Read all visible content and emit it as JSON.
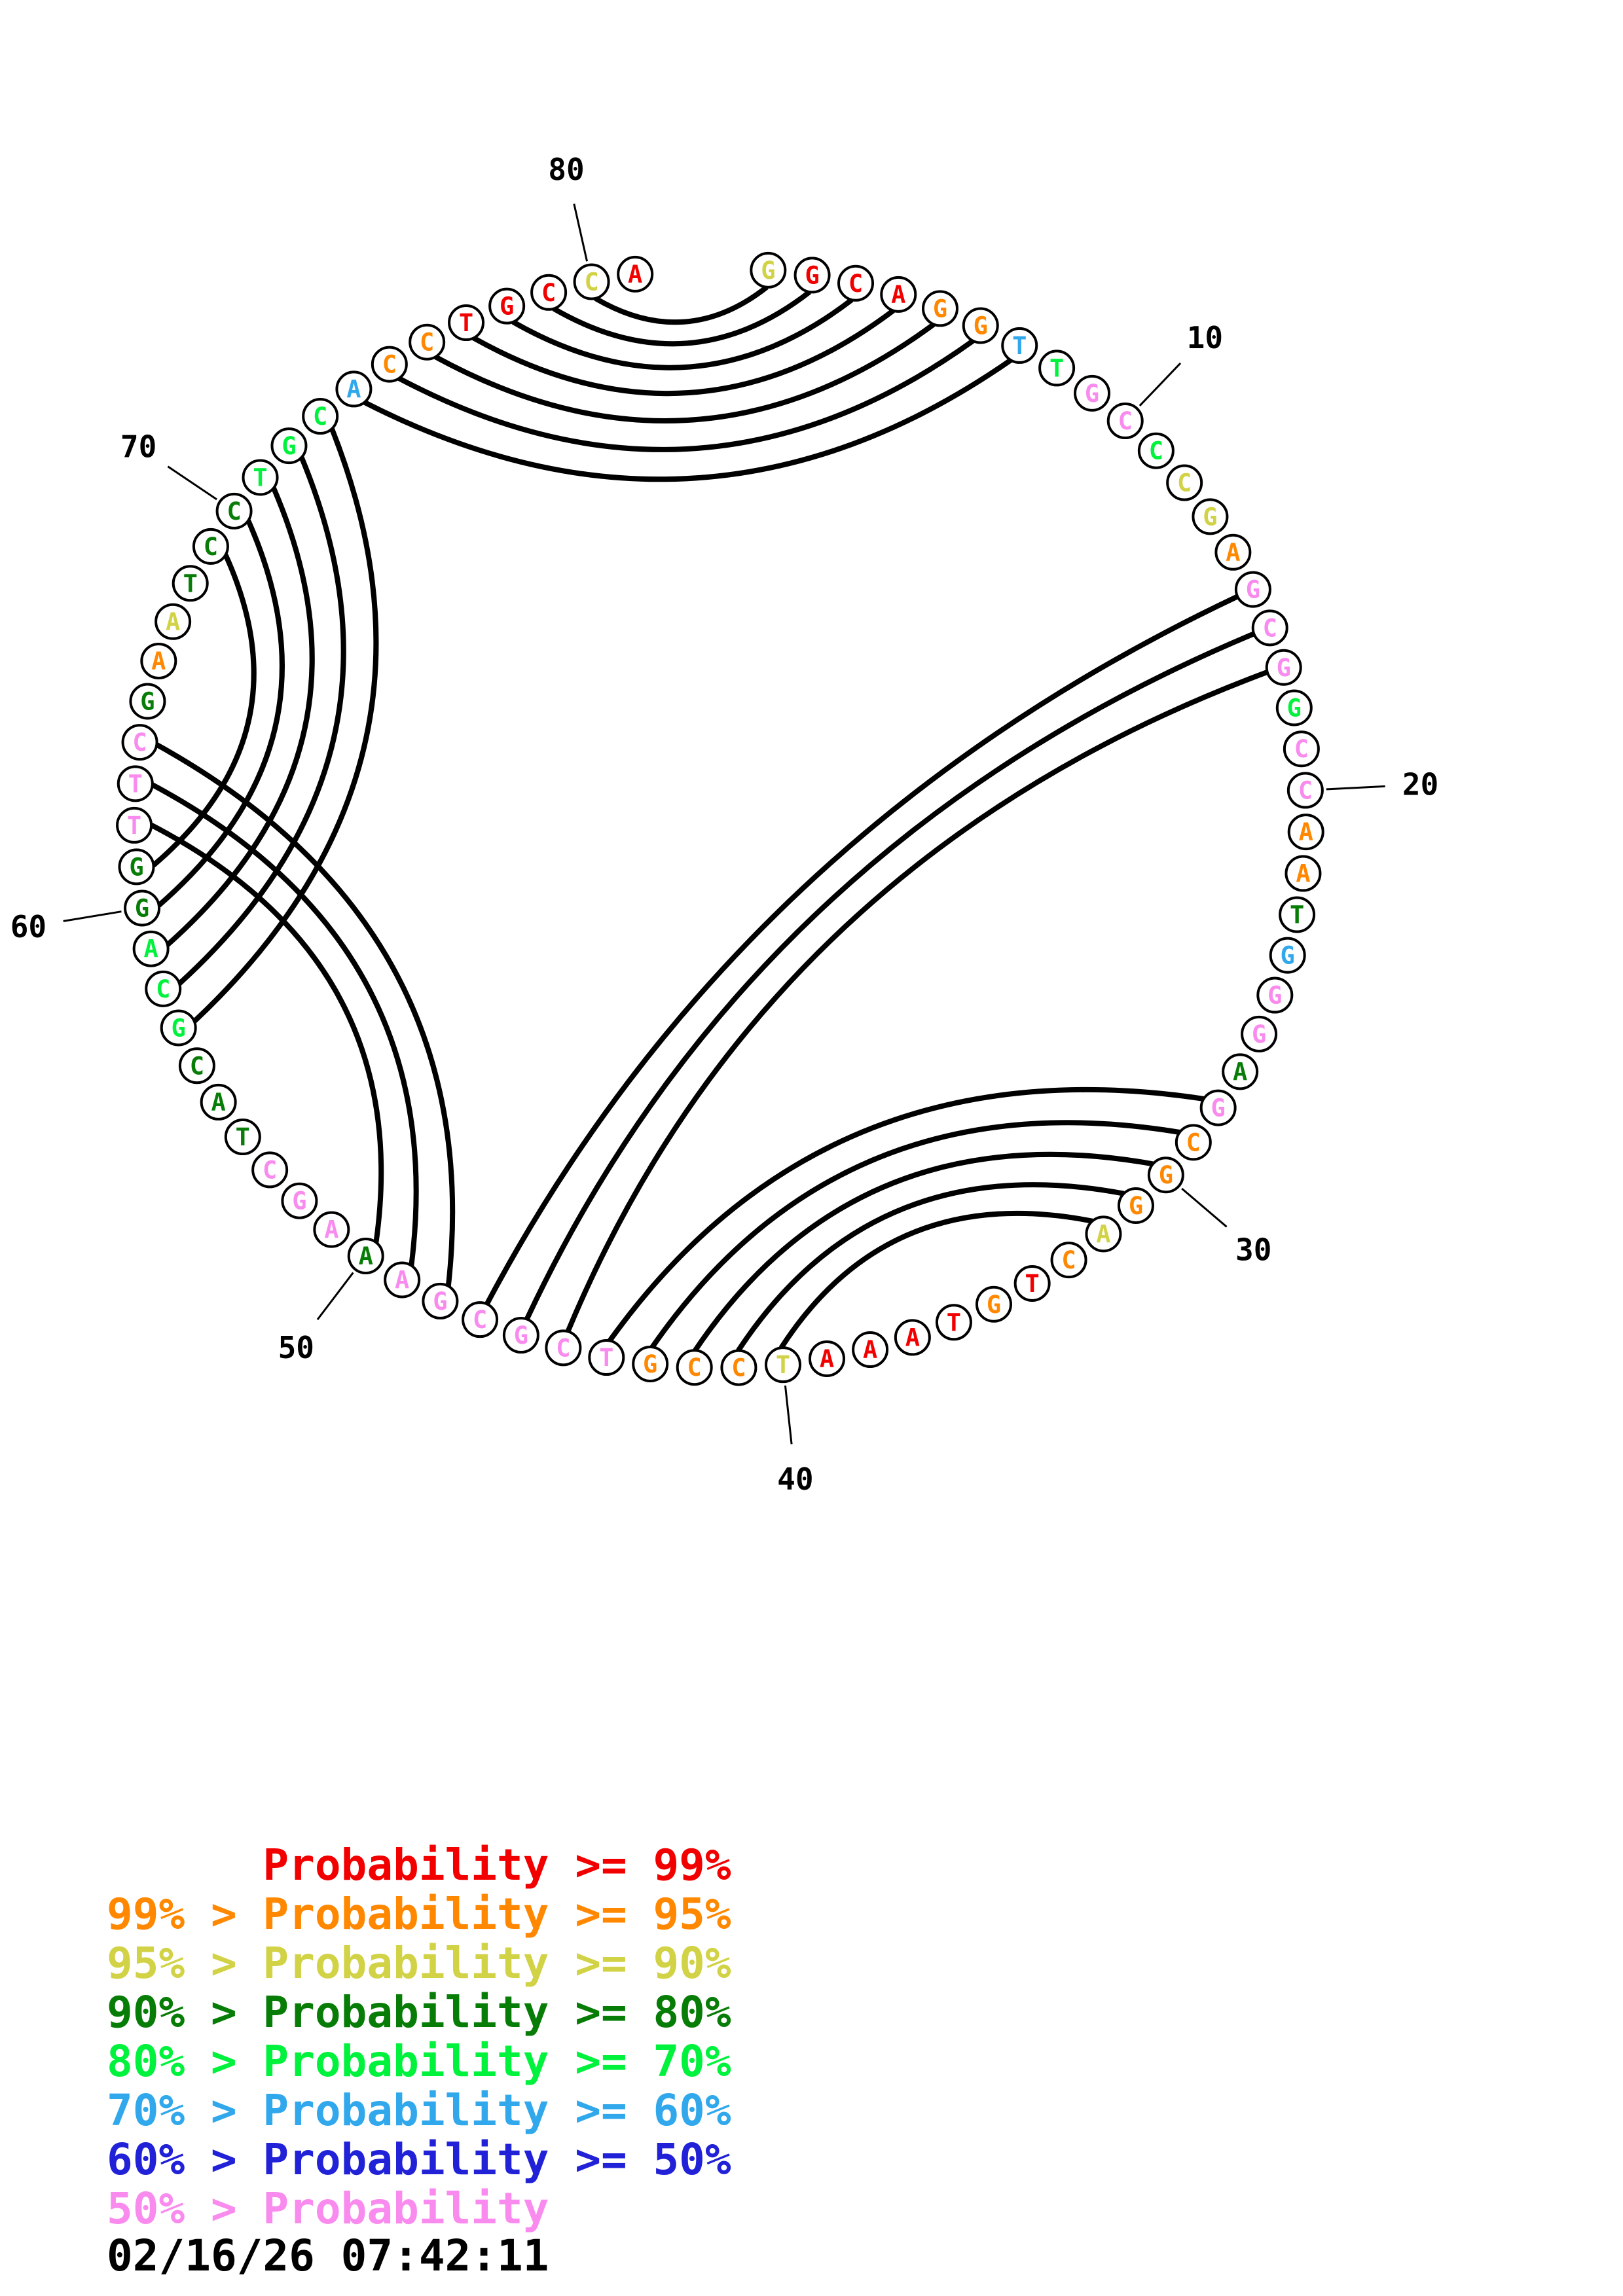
{
  "plot": {
    "description": "circular base-pair probability plot",
    "sequence_length": 81,
    "bases": "GGCAGGTTGCCCGAGCGGCCAATGGGAGCGGACTGTAAATCCGTCGCGAAAGCTACGCAGGTTCGAATCCTGCACCTGCCA",
    "classes": [
      "c90",
      "c99",
      "c99",
      "c99",
      "c95",
      "c95",
      "c60",
      "c70",
      "c00",
      "c00",
      "c70",
      "c90",
      "c90",
      "c95",
      "c00",
      "c00",
      "c00",
      "c70",
      "c00",
      "c00",
      "c95",
      "c95",
      "c80",
      "c60",
      "c00",
      "c00",
      "c80",
      "c00",
      "c95",
      "c95",
      "c95",
      "c90",
      "c95",
      "c99",
      "c95",
      "c99",
      "c99",
      "c99",
      "c99",
      "c90",
      "c95",
      "c95",
      "c95",
      "c00",
      "c00",
      "c00",
      "c00",
      "c00",
      "c00",
      "c80",
      "c00",
      "c00",
      "c00",
      "c80",
      "c80",
      "c80",
      "c70",
      "c70",
      "c70",
      "c80",
      "c80",
      "c00",
      "c00",
      "c00",
      "c80",
      "c95",
      "c90",
      "c80",
      "c80",
      "c80",
      "c70",
      "c70",
      "c70",
      "c60",
      "c95",
      "c95",
      "c99",
      "c99",
      "c99",
      "c90",
      "c99"
    ],
    "pairs": [
      [
        1,
        80
      ],
      [
        2,
        79
      ],
      [
        3,
        78
      ],
      [
        4,
        77
      ],
      [
        5,
        76
      ],
      [
        6,
        75
      ],
      [
        7,
        74
      ],
      [
        15,
        47
      ],
      [
        16,
        46
      ],
      [
        17,
        45
      ],
      [
        28,
        44
      ],
      [
        29,
        43
      ],
      [
        30,
        42
      ],
      [
        31,
        41
      ],
      [
        32,
        40
      ],
      [
        48,
        64
      ],
      [
        49,
        63
      ],
      [
        50,
        62
      ],
      [
        57,
        73
      ],
      [
        58,
        72
      ],
      [
        59,
        71
      ],
      [
        60,
        70
      ],
      [
        61,
        69
      ]
    ],
    "position_labels": [
      "10",
      "20",
      "30",
      "40",
      "50",
      "60",
      "70",
      "80"
    ],
    "colors": {
      "c99": "#f20000",
      "c95": "#ff8800",
      "c90": "#d2d246",
      "c80": "#077d07",
      "c70": "#00f23c",
      "c60": "#31a8ec",
      "c50": "#2121d8",
      "c00": "#f98bef",
      "ink": "#000000"
    },
    "legend": [
      {
        "text": "      Probability >= 99%",
        "c": "c99"
      },
      {
        "text": "99% > Probability >= 95%",
        "c": "c95"
      },
      {
        "text": "95% > Probability >= 90%",
        "c": "c90"
      },
      {
        "text": "90% > Probability >= 80%",
        "c": "c80"
      },
      {
        "text": "80% > Probability >= 70%",
        "c": "c70"
      },
      {
        "text": "70% > Probability >= 60%",
        "c": "c60"
      },
      {
        "text": "60% > Probability >= 50%",
        "c": "c50"
      },
      {
        "text": "50% > Probability",
        "c": "c00"
      }
    ],
    "timestamp": "02/16/26 07:42:11"
  },
  "chart_data": {
    "type": "circular-arc-diagram",
    "title": "",
    "sequence": "GGCAGGTTGCCCGAGCGGCCAATGGGAGCGGACTGTAAATCCGTCGCGAAAGCTACGCAGGTTCGAATCCTGCACCTGCCA",
    "sequence_length": 81,
    "numbered_positions": [
      10,
      20,
      30,
      40,
      50,
      60,
      70,
      80
    ],
    "base_pairs": [
      [
        1,
        80
      ],
      [
        2,
        79
      ],
      [
        3,
        78
      ],
      [
        4,
        77
      ],
      [
        5,
        76
      ],
      [
        6,
        75
      ],
      [
        7,
        74
      ],
      [
        15,
        47
      ],
      [
        16,
        46
      ],
      [
        17,
        45
      ],
      [
        28,
        44
      ],
      [
        29,
        43
      ],
      [
        30,
        42
      ],
      [
        31,
        41
      ],
      [
        32,
        40
      ],
      [
        48,
        64
      ],
      [
        49,
        63
      ],
      [
        50,
        62
      ],
      [
        57,
        73
      ],
      [
        58,
        72
      ],
      [
        59,
        71
      ],
      [
        60,
        70
      ],
      [
        61,
        69
      ]
    ],
    "probability_class_per_position": [
      "90-95",
      "99-100",
      "99-100",
      "99-100",
      "95-99",
      "95-99",
      "60-70",
      "70-80",
      "<50",
      "<50",
      "70-80",
      "90-95",
      "90-95",
      "95-99",
      "<50",
      "<50",
      "<50",
      "70-80",
      "<50",
      "<50",
      "95-99",
      "95-99",
      "80-90",
      "60-70",
      "<50",
      "<50",
      "80-90",
      "<50",
      "95-99",
      "95-99",
      "95-99",
      "90-95",
      "95-99",
      "99-100",
      "95-99",
      "99-100",
      "99-100",
      "99-100",
      "99-100",
      "90-95",
      "95-99",
      "95-99",
      "95-99",
      "<50",
      "<50",
      "<50",
      "<50",
      "<50",
      "<50",
      "80-90",
      "<50",
      "<50",
      "<50",
      "80-90",
      "80-90",
      "80-90",
      "70-80",
      "70-80",
      "70-80",
      "80-90",
      "80-90",
      "<50",
      "<50",
      "<50",
      "80-90",
      "95-99",
      "90-95",
      "80-90",
      "80-90",
      "80-90",
      "70-80",
      "70-80",
      "70-80",
      "60-70",
      "95-99",
      "95-99",
      "99-100",
      "99-100",
      "99-100",
      "90-95",
      "99-100"
    ],
    "legend_entries": [
      "Probability >= 99%",
      "99% > Probability >= 95%",
      "95% > Probability >= 90%",
      "90% > Probability >= 80%",
      "80% > Probability >= 70%",
      "70% > Probability >= 60%",
      "60% > Probability >= 50%",
      "50% > Probability"
    ],
    "timestamp": "02/16/26 07:42:11"
  }
}
